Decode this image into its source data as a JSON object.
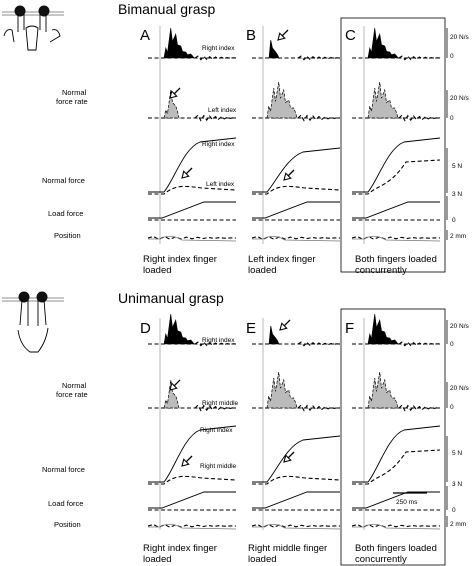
{
  "sections": [
    {
      "title": "Bimanual grasp",
      "panels": [
        {
          "letter": "A",
          "caption": [
            "Right index finger",
            "loaded"
          ]
        },
        {
          "letter": "B",
          "caption": [
            "Left index finger",
            "loaded"
          ]
        },
        {
          "letter": "C",
          "caption": [
            "Both fingers loaded",
            "concurrently"
          ]
        }
      ],
      "row_labels": {
        "force_rate": [
          "Normal",
          "force rate"
        ],
        "normal_force": "Normal force",
        "load_force": "Load force",
        "position": "Position"
      },
      "trace_labels": {
        "rate_upper": "Right index",
        "rate_lower": "Left index",
        "force_upper": "Right index",
        "force_lower": "Left index"
      },
      "units": {
        "rate_upper": "20 N/s",
        "rate_upper_zero": "0",
        "rate_lower": "20 N/s",
        "rate_lower_zero": "0",
        "force_upper": "5 N",
        "force_lower": "3 N",
        "load_zero": "0",
        "position": "2 mm"
      }
    },
    {
      "title": "Unimanual grasp",
      "panels": [
        {
          "letter": "D",
          "caption": [
            "Right index finger",
            "loaded"
          ]
        },
        {
          "letter": "E",
          "caption": [
            "Right middle finger",
            "loaded"
          ]
        },
        {
          "letter": "F",
          "caption": [
            "Both fingers loaded",
            "concurrently"
          ]
        }
      ],
      "row_labels": {
        "force_rate": [
          "Normal",
          "force rate"
        ],
        "normal_force": "Normal force",
        "load_force": "Load force",
        "position": "Position"
      },
      "trace_labels": {
        "rate_upper": "Right index",
        "rate_lower": "Right middle",
        "force_upper": "Right index",
        "force_lower": "Right middle"
      },
      "units": {
        "rate_upper": "20 N/s",
        "rate_upper_zero": "0",
        "rate_lower": "20 N/s",
        "rate_lower_zero": "0",
        "force_upper": "5 N",
        "force_lower": "3 N",
        "load_zero": "0",
        "position": "2 mm"
      },
      "scale_bar": "250 ms"
    }
  ],
  "icons": [
    "bimanual-hands-icon",
    "unimanual-hand-icon"
  ]
}
